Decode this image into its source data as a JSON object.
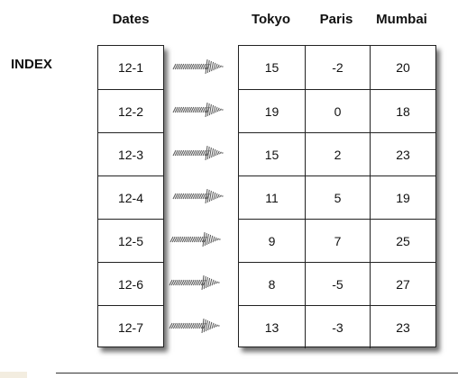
{
  "headers": {
    "dates": "Dates",
    "tokyo": "Tokyo",
    "paris": "Paris",
    "mumbai": "Mumbai"
  },
  "index_label": "INDEX",
  "rows": [
    {
      "date": "12-1",
      "tokyo": "15",
      "paris": "-2",
      "mumbai": "20"
    },
    {
      "date": "12-2",
      "tokyo": "19",
      "paris": "0",
      "mumbai": "18"
    },
    {
      "date": "12-3",
      "tokyo": "15",
      "paris": "2",
      "mumbai": "23"
    },
    {
      "date": "12-4",
      "tokyo": "11",
      "paris": "5",
      "mumbai": "19"
    },
    {
      "date": "12-5",
      "tokyo": "9",
      "paris": "7",
      "mumbai": "25"
    },
    {
      "date": "12-6",
      "tokyo": "8",
      "paris": "-5",
      "mumbai": "27"
    },
    {
      "date": "12-7",
      "tokyo": "13",
      "paris": "-3",
      "mumbai": "23"
    }
  ],
  "colors": {
    "border": "#222222",
    "arrow": "#555555",
    "text": "#111111"
  },
  "icons": {
    "row_arrow": "hatched-arrow-icon"
  }
}
